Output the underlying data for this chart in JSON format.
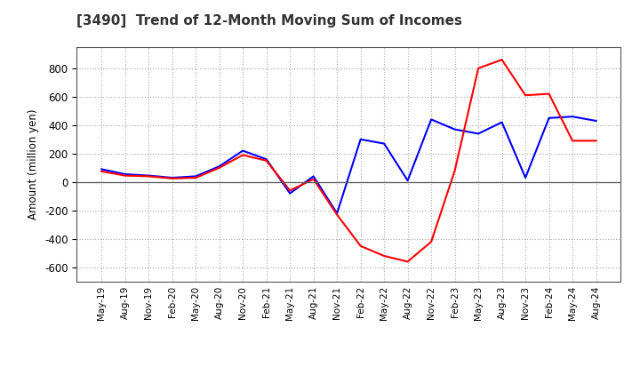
{
  "title": "[3490]  Trend of 12-Month Moving Sum of Incomes",
  "ylabel": "Amount (million yen)",
  "ylim": [
    -700,
    950
  ],
  "yticks": [
    -600,
    -400,
    -200,
    0,
    200,
    400,
    600,
    800
  ],
  "ordinary_income_color": "#0000FF",
  "net_income_color": "#FF0000",
  "background_color": "#FFFFFF",
  "grid_color": "#AAAAAA",
  "x_labels": [
    "May-19",
    "Aug-19",
    "Nov-19",
    "Feb-20",
    "May-20",
    "Aug-20",
    "Nov-20",
    "Feb-21",
    "May-21",
    "Aug-21",
    "Nov-21",
    "Feb-22",
    "May-22",
    "Aug-22",
    "Nov-22",
    "Feb-23",
    "May-23",
    "Aug-23",
    "Nov-23",
    "Feb-24",
    "May-24",
    "Aug-24"
  ],
  "ordinary_income": [
    90,
    55,
    45,
    30,
    40,
    110,
    220,
    160,
    -80,
    40,
    -220,
    300,
    270,
    10,
    440,
    370,
    340,
    420,
    30,
    450,
    460,
    430
  ],
  "net_income": [
    75,
    45,
    40,
    25,
    30,
    100,
    190,
    150,
    -60,
    20,
    -230,
    -450,
    -520,
    -560,
    -420,
    80,
    800,
    860,
    610,
    620,
    290,
    290
  ]
}
